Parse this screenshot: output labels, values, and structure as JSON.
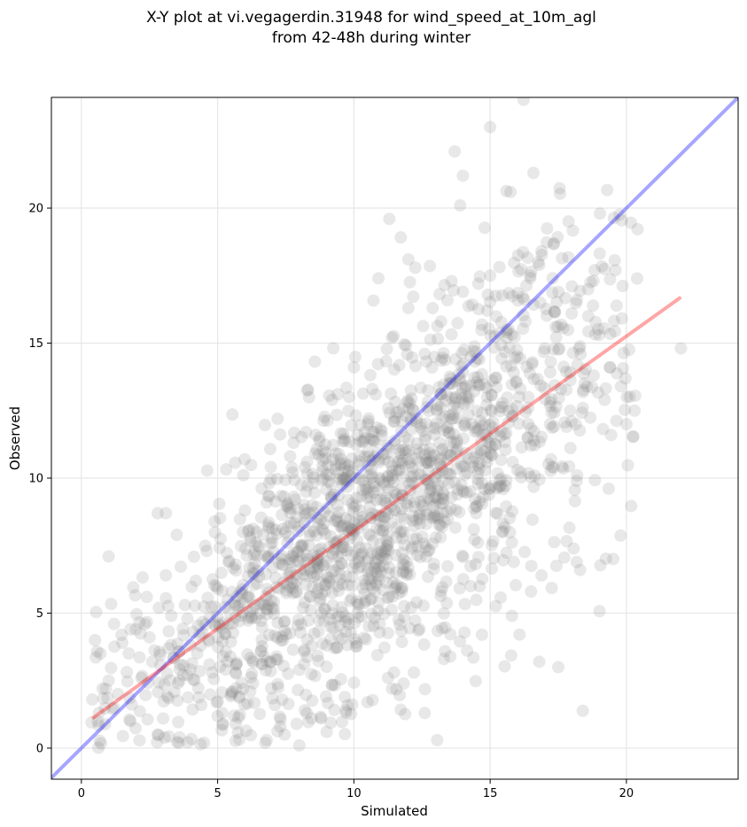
{
  "chart_data": {
    "type": "scatter",
    "title_line1": "X-Y plot at vi.vegagerdin.31948 for wind_speed_at_10m_agl",
    "title_line2": "from 42-48h during winter",
    "xlabel": "Simulated",
    "ylabel": "Observed",
    "xlim": [
      -1.1,
      24.1
    ],
    "ylim": [
      -1.15,
      24.1
    ],
    "xticks": [
      0,
      5,
      10,
      15,
      20
    ],
    "yticks": [
      0,
      5,
      10,
      15,
      20
    ],
    "grid": true,
    "legend": "none",
    "point_color": "#808080",
    "identity_line": {
      "color": "#0000ff",
      "from": [
        -1.1,
        -1.1
      ],
      "to": [
        24.1,
        24.1
      ]
    },
    "fit_line": {
      "color": "#ff0000",
      "from": [
        0.4,
        1.1
      ],
      "to": [
        22.0,
        16.7
      ]
    },
    "n_points": 1800,
    "points": {
      "x": [
        0.4,
        0.5,
        0.6,
        0.7,
        0.9,
        1.0,
        1.2,
        1.5,
        1.8,
        2.0,
        2.2,
        2.4,
        2.6,
        2.8,
        3.0,
        3.1,
        3.3,
        3.5,
        3.6,
        3.8,
        4.0,
        4.2,
        4.4,
        4.6,
        4.8,
        5.0,
        5.2,
        5.4,
        5.6,
        5.8,
        6.0,
        6.2,
        6.4,
        6.6,
        6.8,
        7.0,
        7.2,
        7.4,
        7.6,
        7.8,
        8.0,
        8.2,
        8.4,
        8.6,
        8.8,
        9.0,
        9.2,
        9.4,
        9.6,
        9.8,
        10.0,
        10.2,
        10.4,
        10.6,
        10.8,
        11.0,
        11.2,
        11.4,
        11.6,
        11.8,
        12.0,
        12.2,
        12.4,
        12.6,
        12.8,
        13.0,
        13.2,
        13.4,
        13.6,
        13.8,
        14.0,
        14.2,
        14.4,
        14.6,
        14.8,
        15.0,
        15.2,
        15.4,
        15.6,
        15.8,
        16.0,
        16.2,
        16.4,
        16.6,
        16.8,
        17.0,
        17.2,
        17.4,
        17.6,
        17.8,
        18.0,
        18.2,
        18.4,
        18.6,
        18.8,
        19.0,
        19.2,
        19.4,
        19.6,
        19.8,
        20.0,
        20.3,
        13.7,
        15.0,
        13.9,
        11.3,
        12.0,
        10.9,
        1.0,
        3.1,
        14.0,
        22.0,
        2.8,
        5.2,
        6.8,
        4.5,
        3.6,
        9.0,
        8.0,
        7.3,
        12.6,
        16.8,
        17.5,
        18.3,
        16.5,
        15.8,
        14.7,
        13.3,
        12.2,
        11.4,
        10.5,
        9.7,
        8.8,
        7.9,
        7.1,
        6.3,
        5.5,
        4.7,
        3.9,
        3.2,
        2.5,
        1.8,
        1.2
      ],
      "y": [
        1.8,
        4.0,
        1.0,
        3.5,
        2.2,
        2.5,
        1.5,
        3.9,
        1.0,
        4.4,
        2.6,
        5.6,
        3.2,
        8.7,
        1.1,
        6.4,
        4.9,
        7.9,
        2.5,
        5.3,
        3.8,
        6.2,
        1.6,
        7.3,
        2.8,
        5.9,
        3.4,
        6.9,
        1.2,
        4.7,
        8.8,
        2.1,
        7.6,
        3.6,
        9.1,
        5.2,
        12.2,
        4.0,
        8.9,
        6.1,
        2.9,
        10.4,
        5.6,
        11.6,
        7.4,
        3.8,
        12.9,
        6.0,
        10.0,
        4.8,
        14.1,
        8.4,
        11.7,
        5.5,
        13.1,
        9.2,
        7.0,
        15.2,
        10.6,
        6.5,
        16.3,
        12.5,
        8.6,
        14.6,
        11.1,
        7.8,
        15.8,
        10.2,
        13.5,
        9.4,
        16.9,
        12.8,
        8.1,
        14.4,
        11.0,
        17.5,
        13.7,
        9.7,
        15.4,
        12.3,
        10.3,
        16.7,
        13.0,
        11.4,
        17.9,
        14.8,
        12.0,
        15.6,
        13.3,
        11.9,
        17.1,
        14.2,
        12.6,
        16.0,
        13.8,
        15.3,
        12.9,
        14.1,
        17.7,
        13.4,
        12.0,
        12.5,
        22.1,
        23.0,
        20.1,
        19.6,
        18.1,
        17.4,
        7.1,
        8.7,
        21.2,
        14.8,
        0.5,
        0.9,
        0.3,
        0.2,
        0.4,
        0.6,
        0.1,
        0.8,
        1.3,
        3.2,
        3.0,
        6.6,
        5.8,
        4.9,
        4.2,
        3.3,
        2.8,
        2.2,
        1.7,
        1.4,
        1.1,
        0.9,
        1.6,
        2.4,
        2.0,
        3.1,
        2.7,
        3.7,
        4.1,
        4.4,
        4.6
      ]
    }
  }
}
